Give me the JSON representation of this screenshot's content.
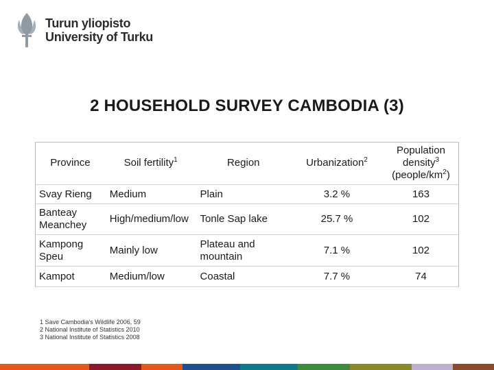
{
  "logo": {
    "line1": "Turun yliopisto",
    "line2": "University of Turku",
    "icon": "torch-emblem-icon"
  },
  "slide": {
    "title": "2 HOUSEHOLD SURVEY CAMBODIA (3)"
  },
  "table": {
    "headers": {
      "province": "Province",
      "soil": "Soil fertility",
      "soil_sup": "1",
      "region": "Region",
      "urbanization": "Urbanization",
      "urbanization_sup": "2",
      "density_l1": "Population",
      "density_l2": "density",
      "density_sup": "3",
      "density_l3a": "(people/km",
      "density_l3sup": "2",
      "density_l3b": ")"
    },
    "rows": [
      {
        "province": "Svay Rieng",
        "soil": "Medium",
        "region": "Plain",
        "urbanization": "3.2 %",
        "density": "163"
      },
      {
        "province": "Banteay Meanchey",
        "soil": "High/medium/low",
        "region": "Tonle Sap lake",
        "urbanization": "25.7 %",
        "density": "102"
      },
      {
        "province": "Kampong Speu",
        "soil": "Mainly low",
        "region": "Plateau and mountain",
        "urbanization": "7.1 %",
        "density": "102"
      },
      {
        "province": "Kampot",
        "soil": "Medium/low",
        "region": "Coastal",
        "urbanization": "7.7 %",
        "density": "74"
      }
    ]
  },
  "footnotes": [
    "1 Save Cambodia's Wildlife 2006, 59",
    "2 National Institute of Statistics 2010",
    "3 National Institute of Statistics 2008"
  ],
  "colors": {
    "bar": [
      "#e05a1e",
      "#8a1a2b",
      "#e05a1e",
      "#1f4f8c",
      "#0f7a8a",
      "#3d8c3d",
      "#8a8a2a",
      "#c0b0d0",
      "#8a4a2b"
    ]
  }
}
